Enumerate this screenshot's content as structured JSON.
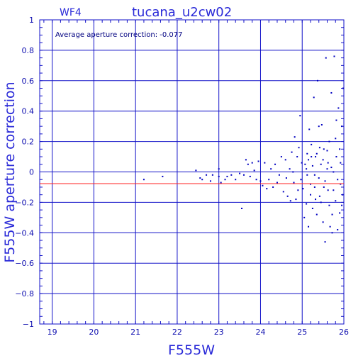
{
  "colors": {
    "frame": "#1010c8",
    "text": "#2a2ad8",
    "points": "#0000c0",
    "mean_line": "#ff2020",
    "background": "#ffffff"
  },
  "chart_data": {
    "type": "scatter",
    "chip_label": "WF4",
    "title": "tucana_u2cw02",
    "annotation": "Average aperture correction: -0.077",
    "xlabel": "F555W",
    "ylabel": "F555W aperture correction",
    "xlim": [
      18.7,
      26.0
    ],
    "ylim": [
      -1.0,
      1.0
    ],
    "x_ticks": [
      "19",
      "20",
      "21",
      "22",
      "23",
      "24",
      "25",
      "26"
    ],
    "y_ticks": [
      "1",
      "0.8",
      "0.6",
      "0.4",
      "0.2",
      "0",
      "-0.2",
      "-0.4",
      "-0.6",
      "-0.8",
      "-1"
    ],
    "grid": true,
    "mean_line_y": -0.077,
    "points": [
      [
        21.2,
        -0.05
      ],
      [
        21.65,
        -0.03
      ],
      [
        22.45,
        0.01
      ],
      [
        22.55,
        -0.04
      ],
      [
        22.6,
        -0.05
      ],
      [
        22.7,
        -0.02
      ],
      [
        22.8,
        -0.06
      ],
      [
        22.85,
        -0.02
      ],
      [
        23.0,
        0.02
      ],
      [
        23.0,
        -0.03
      ],
      [
        23.05,
        -0.07
      ],
      [
        23.15,
        -0.05
      ],
      [
        23.2,
        -0.03
      ],
      [
        23.3,
        -0.02
      ],
      [
        23.4,
        -0.05
      ],
      [
        23.5,
        -0.01
      ],
      [
        23.55,
        -0.24
      ],
      [
        23.6,
        -0.02
      ],
      [
        23.65,
        0.08
      ],
      [
        23.7,
        0.05
      ],
      [
        23.75,
        -0.03
      ],
      [
        23.8,
        0.06
      ],
      [
        23.85,
        0.01
      ],
      [
        23.9,
        -0.05
      ],
      [
        23.95,
        0.07
      ],
      [
        24.0,
        -0.06
      ],
      [
        24.05,
        -0.09
      ],
      [
        24.1,
        0.06
      ],
      [
        24.15,
        -0.11
      ],
      [
        24.2,
        -0.05
      ],
      [
        24.25,
        0.02
      ],
      [
        24.3,
        -0.1
      ],
      [
        24.35,
        0.05
      ],
      [
        24.4,
        -0.07
      ],
      [
        24.45,
        -0.02
      ],
      [
        24.5,
        0.1
      ],
      [
        24.55,
        -0.13
      ],
      [
        24.6,
        0.08
      ],
      [
        24.62,
        -0.04
      ],
      [
        24.65,
        -0.16
      ],
      [
        24.7,
        0.02
      ],
      [
        24.72,
        -0.19
      ],
      [
        24.75,
        0.13
      ],
      [
        24.78,
        0.0
      ],
      [
        24.8,
        -0.07
      ],
      [
        24.82,
        0.23
      ],
      [
        24.85,
        -0.18
      ],
      [
        24.88,
        0.1
      ],
      [
        24.9,
        -0.12
      ],
      [
        24.92,
        0.16
      ],
      [
        24.95,
        0.37
      ],
      [
        24.97,
        -0.05
      ],
      [
        24.99,
        0.06
      ],
      [
        25.02,
        -0.11
      ],
      [
        25.05,
        -0.3
      ],
      [
        25.07,
        0.05
      ],
      [
        25.1,
        -0.21
      ],
      [
        25.12,
        0.12
      ],
      [
        25.15,
        -0.36
      ],
      [
        25.17,
        0.28
      ],
      [
        25.2,
        -0.08
      ],
      [
        25.22,
        0.18
      ],
      [
        25.25,
        -0.24
      ],
      [
        25.28,
        0.49
      ],
      [
        25.3,
        -0.02
      ],
      [
        25.32,
        0.1
      ],
      [
        25.35,
        -0.28
      ],
      [
        25.37,
        0.6
      ],
      [
        25.4,
        0.3
      ],
      [
        25.42,
        -0.16
      ],
      [
        25.45,
        0.05
      ],
      [
        25.47,
        0.31
      ],
      [
        25.5,
        -0.33
      ],
      [
        25.52,
        0.15
      ],
      [
        25.55,
        -0.46
      ],
      [
        25.57,
        0.75
      ],
      [
        25.6,
        0.02
      ],
      [
        25.62,
        -0.12
      ],
      [
        25.65,
        0.2
      ],
      [
        25.67,
        -0.36
      ],
      [
        25.7,
        0.52
      ],
      [
        25.72,
        -0.4
      ],
      [
        25.75,
        0.0
      ],
      [
        25.77,
        0.76
      ],
      [
        25.8,
        -0.19
      ],
      [
        25.82,
        0.1
      ],
      [
        25.85,
        -0.38
      ],
      [
        25.87,
        0.42
      ],
      [
        25.9,
        -0.27
      ],
      [
        25.92,
        0.06
      ],
      [
        25.95,
        0.3
      ],
      [
        25.97,
        -0.15
      ],
      [
        25.98,
        0.55
      ],
      [
        25.1,
        0.02
      ],
      [
        25.15,
        0.08
      ],
      [
        25.2,
        -0.15
      ],
      [
        25.25,
        0.04
      ],
      [
        25.3,
        -0.1
      ],
      [
        25.35,
        0.12
      ],
      [
        25.4,
        -0.04
      ],
      [
        25.45,
        -0.2
      ],
      [
        25.5,
        0.08
      ],
      [
        25.55,
        -0.06
      ],
      [
        25.6,
        0.14
      ],
      [
        25.65,
        -0.22
      ],
      [
        25.7,
        0.03
      ],
      [
        25.75,
        -0.12
      ],
      [
        25.8,
        0.22
      ],
      [
        25.85,
        -0.05
      ],
      [
        25.9,
        0.15
      ],
      [
        25.95,
        -0.22
      ],
      [
        25.12,
        -0.02
      ],
      [
        25.22,
        0.1
      ],
      [
        25.32,
        -0.18
      ],
      [
        25.42,
        0.16
      ],
      [
        25.52,
        -0.1
      ],
      [
        25.62,
        0.06
      ],
      [
        25.72,
        -0.28
      ],
      [
        25.82,
        0.34
      ],
      [
        25.92,
        -0.08
      ]
    ]
  }
}
